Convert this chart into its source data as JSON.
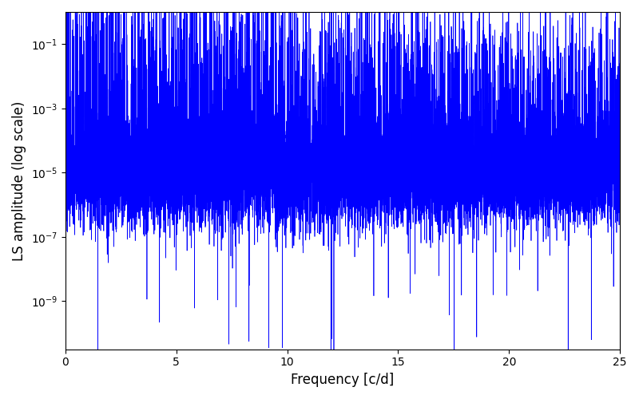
{
  "xlabel": "Frequency [c/d]",
  "ylabel": "LS amplitude (log scale)",
  "xlim": [
    0,
    25
  ],
  "ylim_log_min": -10.5,
  "ylim_log_max": 0,
  "line_color": "#0000ff",
  "line_width": 0.5,
  "background_color": "#ffffff",
  "xticks": [
    0,
    5,
    10,
    15,
    20,
    25
  ],
  "figsize": [
    8.0,
    5.0
  ],
  "dpi": 100,
  "n_points": 15000,
  "seed": 137
}
